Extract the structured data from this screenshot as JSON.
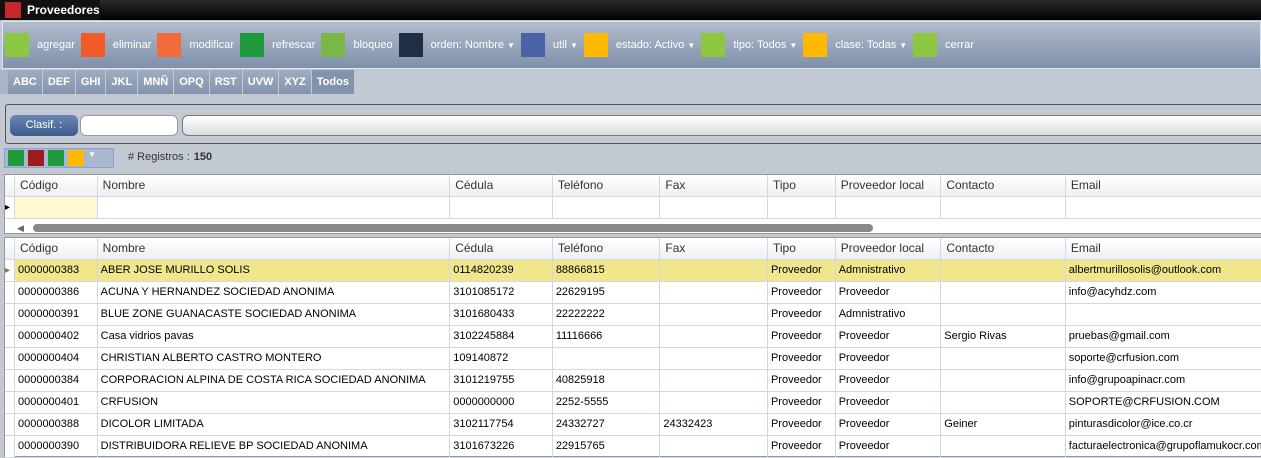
{
  "window": {
    "title": "Proveedores"
  },
  "toolbar": {
    "items": [
      {
        "label": "agregar",
        "icon": "plus-icon",
        "color": "#8dc63f",
        "dropdown": false
      },
      {
        "label": "eliminar",
        "icon": "trash-icon",
        "color": "#f15a29",
        "dropdown": false
      },
      {
        "label": "modificar",
        "icon": "pencil-icon",
        "color": "#f26b3a",
        "dropdown": false
      },
      {
        "label": "refrescar",
        "icon": "refresh-clock-icon",
        "color": "#1e9a3c",
        "dropdown": false
      },
      {
        "label": "bloqueo",
        "icon": "lock-icon",
        "color": "#7ab648",
        "dropdown": false
      },
      {
        "label": "orden: Nombre",
        "icon": "notepad-icon",
        "color": "#1f2d46",
        "dropdown": true
      },
      {
        "label": "util",
        "icon": "network-icon",
        "color": "#4a63a8",
        "dropdown": true
      },
      {
        "label": "estado: Activo",
        "icon": "lightbulb-icon",
        "color": "#ffb900",
        "dropdown": true
      },
      {
        "label": "tipo: Todos",
        "icon": "magic-wand-icon",
        "color": "#8dc63f",
        "dropdown": true
      },
      {
        "label": "clase: Todas",
        "icon": "dots-icon",
        "color": "#ffb900",
        "dropdown": true
      },
      {
        "label": "cerrar",
        "icon": "close-document-icon",
        "color": "#8dc63f",
        "dropdown": false
      }
    ]
  },
  "letter_tabs": [
    "ABC",
    "DEF",
    "GHI",
    "JKL",
    "MNÑ",
    "OPQ",
    "RST",
    "UVW",
    "XYZ",
    "Todos"
  ],
  "selected_tab": "Todos",
  "filter": {
    "clasif_label": "Clasif. :",
    "clasif_value": "",
    "search_value": ""
  },
  "records": {
    "label": "# Registros :",
    "count": "150"
  },
  "columns": [
    "Código",
    "Nombre",
    "Cédula",
    "Teléfono",
    "Fax",
    "Tipo",
    "Proveedor local",
    "Contacto",
    "Email"
  ],
  "rows": [
    [
      "0000000383",
      "ABER JOSE MURILLO SOLIS",
      "0114820239",
      "88866815",
      "",
      "Proveedor",
      "Admnistrativo",
      "",
      "albertmurillosolis@outlook.com"
    ],
    [
      "0000000386",
      "ACUNA Y HERNANDEZ SOCIEDAD ANONIMA",
      "3101085172",
      "22629195",
      "",
      "Proveedor",
      "Proveedor",
      "",
      "info@acyhdz.com"
    ],
    [
      "0000000391",
      "BLUE ZONE GUANACASTE SOCIEDAD ANONIMA",
      "3101680433",
      "22222222",
      "",
      "Proveedor",
      "Admnistrativo",
      "",
      ""
    ],
    [
      "0000000402",
      "Casa vidrios pavas",
      "3102245884",
      "11116666",
      "",
      "Proveedor",
      "Proveedor",
      "Sergio Rivas",
      "pruebas@gmail.com"
    ],
    [
      "0000000404",
      "CHRISTIAN ALBERTO CASTRO MONTERO",
      "109140872",
      "",
      "",
      "Proveedor",
      "Proveedor",
      "",
      "soporte@crfusion.com"
    ],
    [
      "0000000384",
      "CORPORACION ALPINA DE COSTA RICA SOCIEDAD ANONIMA",
      "3101219755",
      "40825918",
      "",
      "Proveedor",
      "Proveedor",
      "",
      "info@grupoapinacr.com"
    ],
    [
      "0000000401",
      "CRFUSION",
      "0000000000",
      "2252-5555",
      "",
      "Proveedor",
      "Proveedor",
      "",
      "SOPORTE@CRFUSION.COM"
    ],
    [
      "0000000388",
      "DICOLOR LIMITADA",
      "3102117754",
      "24332727",
      "24332423",
      "Proveedor",
      "Proveedor",
      "Geiner",
      "pinturasdicolor@ice.co.cr"
    ],
    [
      "0000000390",
      "DISTRIBUIDORA RELIEVE BP SOCIEDAD ANONIMA",
      "3101673226",
      "22915765",
      "",
      "Proveedor",
      "Proveedor",
      "",
      "facturaelectronica@grupoflamukocr.com"
    ]
  ]
}
